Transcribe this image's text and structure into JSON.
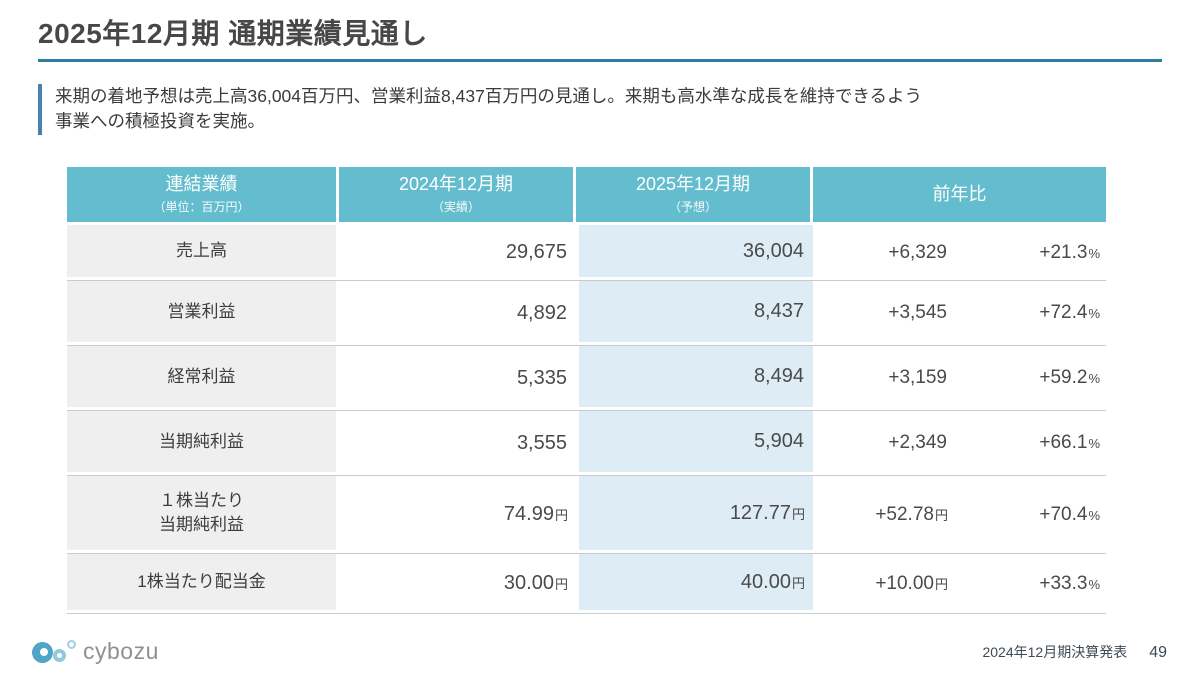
{
  "slide": {
    "title": "2025年12月期 通期業績見通し",
    "subtitle": "来期の着地予想は売上高36,004百万円、営業利益8,437百万円の見通し。来期も高水準な成長を維持できるよう\n事業への積極投資を実施。"
  },
  "table": {
    "header": {
      "col1": {
        "title": "連結業績",
        "sub": "（単位：百万円）"
      },
      "col2": {
        "title": "2024年12月期",
        "sub": "（実績）"
      },
      "col3": {
        "title": "2025年12月期",
        "sub": "（予想）"
      },
      "col4": {
        "title": "前年比",
        "sub": ""
      }
    },
    "rows": [
      {
        "label": "売上高",
        "y2024": "29,675",
        "y2024sfx": "",
        "y2025": "36,004",
        "y2025sfx": "",
        "diff": "+6,329",
        "diffsfx": "",
        "pct": "+21.3",
        "pctsfx": "%"
      },
      {
        "label": "営業利益",
        "y2024": "4,892",
        "y2024sfx": "",
        "y2025": "8,437",
        "y2025sfx": "",
        "diff": "+3,545",
        "diffsfx": "",
        "pct": "+72.4",
        "pctsfx": "%"
      },
      {
        "label": "経常利益",
        "y2024": "5,335",
        "y2024sfx": "",
        "y2025": "8,494",
        "y2025sfx": "",
        "diff": "+3,159",
        "diffsfx": "",
        "pct": "+59.2",
        "pctsfx": "%"
      },
      {
        "label": "当期純利益",
        "y2024": "3,555",
        "y2024sfx": "",
        "y2025": "5,904",
        "y2025sfx": "",
        "diff": "+2,349",
        "diffsfx": "",
        "pct": "+66.1",
        "pctsfx": "%"
      },
      {
        "label": "１株当たり\n当期純利益",
        "y2024": "74.99",
        "y2024sfx": "円",
        "y2025": "127.77",
        "y2025sfx": "円",
        "diff": "+52.78",
        "diffsfx": "円",
        "pct": "+70.4",
        "pctsfx": "%"
      },
      {
        "label": "1株当たり配当金",
        "y2024": "30.00",
        "y2024sfx": "円",
        "y2025": "40.00",
        "y2025sfx": "円",
        "diff": "+10.00",
        "diffsfx": "円",
        "pct": "+33.3",
        "pctsfx": "%"
      }
    ]
  },
  "footer": {
    "logo_text": "cybozu",
    "deck_label": "2024年12月期決算発表",
    "page_number": "49"
  },
  "colors": {
    "header_bg": "#64BDCE",
    "highlight_col_bg": "#DEEDF5",
    "label_col_bg": "#EFEFEF",
    "accent_blue": "#2B7EA4",
    "lead_bar_blue": "#4881AC",
    "row_line": "#CBCBCB",
    "logo_teal": "#4FA5C5",
    "logo_light_blue": "#93C9DC"
  }
}
